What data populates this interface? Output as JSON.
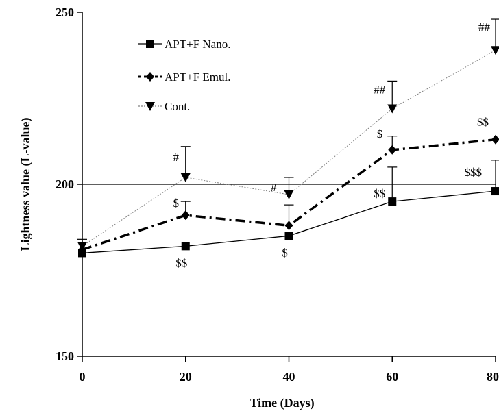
{
  "chart_data": {
    "type": "line",
    "title": "",
    "xlabel": "Time (Days)",
    "ylabel": "Lightness value (L-value)",
    "x": [
      0,
      20,
      40,
      60,
      80
    ],
    "x_ticks": [
      "0",
      "20",
      "40",
      "60",
      "80"
    ],
    "y_ticks": [
      "150",
      "200",
      "250"
    ],
    "xlim": [
      0,
      80
    ],
    "ylim": [
      150,
      250
    ],
    "reference_line_y": 200,
    "legend_position": "top-left",
    "series": [
      {
        "name": "APT+F Nano.",
        "values": [
          180,
          182,
          185,
          195,
          198
        ],
        "error": [
          0,
          0,
          0,
          10,
          9
        ],
        "color": "#000000",
        "marker": "square",
        "line_style": "solid",
        "annotations": [
          "",
          "$$",
          "$",
          "$$",
          "$$$"
        ]
      },
      {
        "name": "APT+F Emul.",
        "values": [
          181,
          191,
          188,
          210,
          213
        ],
        "error": [
          0,
          4,
          6,
          4,
          0
        ],
        "color": "#000000",
        "marker": "diamond",
        "line_style": "dash-dot",
        "annotations": [
          "",
          "$",
          "",
          "$",
          "$$"
        ]
      },
      {
        "name": "Cont.",
        "values": [
          182,
          202,
          197,
          222,
          239
        ],
        "error": [
          2,
          9,
          5,
          8,
          9
        ],
        "color": "#808080",
        "marker": "triangle-down",
        "line_style": "dotted",
        "annotations": [
          "",
          "#",
          "#",
          "##",
          "##"
        ]
      }
    ]
  }
}
